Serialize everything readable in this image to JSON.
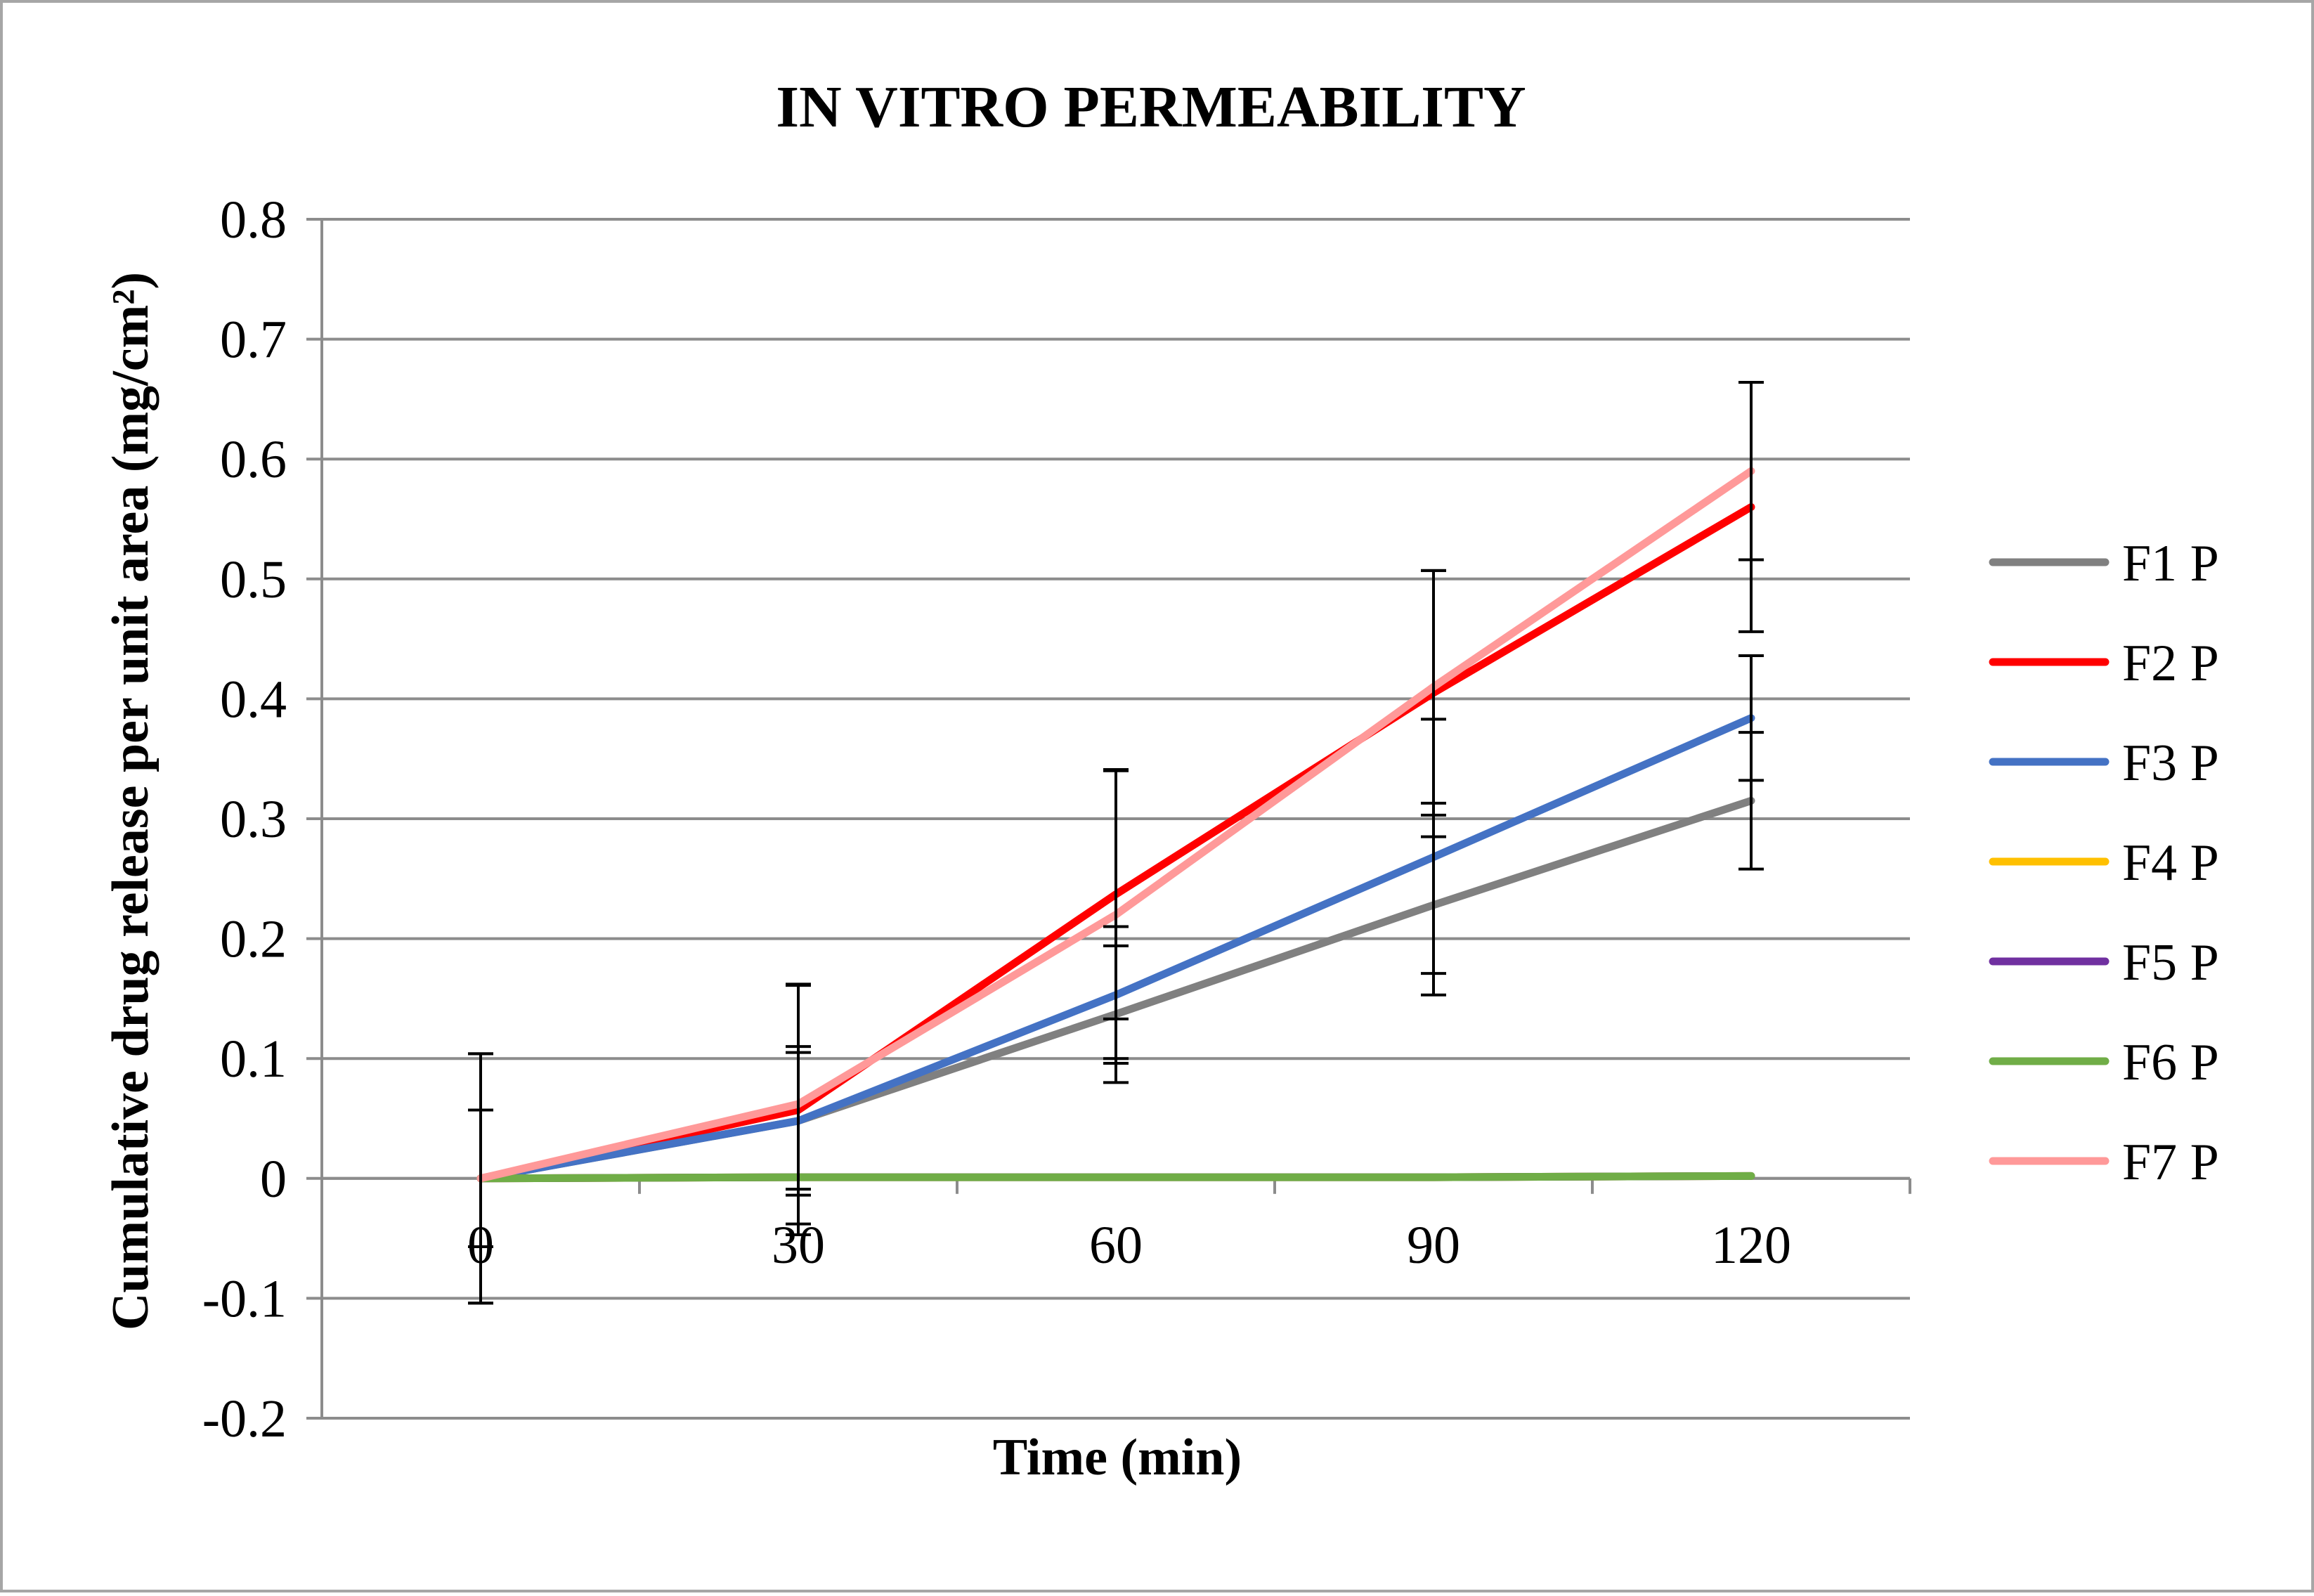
{
  "chart_data": {
    "type": "line",
    "title": "IN VITRO PERMEABILITY",
    "xlabel": "Time (min)",
    "ylabel": "Cumulative drug release per unit area (mg/cm²)",
    "x": [
      0,
      30,
      60,
      90,
      120
    ],
    "x_tick_labels": [
      "0",
      "30",
      "60",
      "90",
      "120"
    ],
    "ylim": [
      -0.2,
      0.8
    ],
    "y_ticks": [
      -0.2,
      -0.1,
      0,
      0.1,
      0.2,
      0.3,
      0.4,
      0.5,
      0.6,
      0.7,
      0.8
    ],
    "y_tick_labels": [
      "-0.2",
      "-0.1",
      "0",
      "0.1",
      "0.2",
      "0.3",
      "0.4",
      "0.5",
      "0.6",
      "0.7",
      "0.8"
    ],
    "grid": true,
    "legend_position": "right",
    "series": [
      {
        "name": "F1 P",
        "color": "#808080",
        "values": [
          0,
          0.048,
          0.137,
          0.228,
          0.315
        ],
        "errors": [
          0.104,
          0.062,
          0.057,
          0.057,
          0.057
        ]
      },
      {
        "name": "F2 P",
        "color": "#ff0000",
        "values": [
          0,
          0.057,
          0.237,
          0.405,
          0.56
        ],
        "errors": [
          0.057,
          0.104,
          0.104,
          0.102,
          0.104
        ]
      },
      {
        "name": "F3 P",
        "color": "#4472c4",
        "values": [
          0,
          0.048,
          0.153,
          0.268,
          0.384
        ],
        "errors": [
          0.057,
          0.057,
          0.057,
          0.115,
          0.052
        ]
      },
      {
        "name": "F4 P",
        "color": "#ffc000",
        "values": [
          0,
          0.001,
          0.001,
          0.001,
          0.002
        ],
        "errors": [
          0,
          0,
          0,
          0,
          0
        ]
      },
      {
        "name": "F5 P",
        "color": "#7030a0",
        "values": [
          0,
          0.001,
          0.001,
          0.001,
          0.002
        ],
        "errors": [
          0,
          0,
          0,
          0,
          0
        ]
      },
      {
        "name": "F6 P",
        "color": "#70ad47",
        "values": [
          0,
          0.001,
          0.001,
          0.001,
          0.002
        ],
        "errors": [
          0,
          0,
          0,
          0,
          0
        ]
      },
      {
        "name": "F7 P",
        "color": "#ff9999",
        "values": [
          0,
          0.062,
          0.22,
          0.41,
          0.59
        ],
        "errors": [
          0.104,
          0.1,
          0.12,
          0.097,
          0.074
        ]
      }
    ]
  }
}
